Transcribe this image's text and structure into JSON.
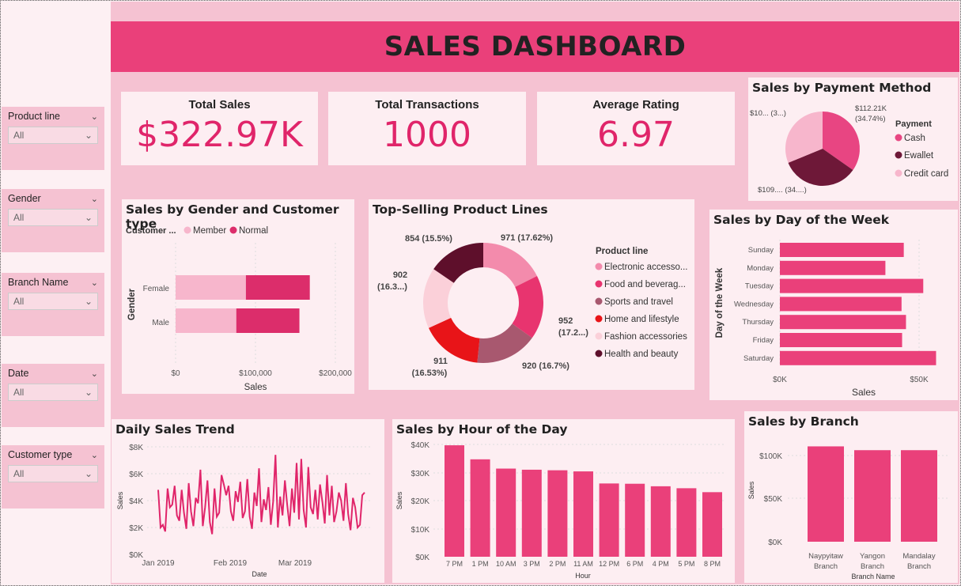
{
  "title": "SALES DASHBOARD",
  "slicers": [
    {
      "label": "Product line",
      "value": "All"
    },
    {
      "label": "Gender",
      "value": "All"
    },
    {
      "label": "Branch Name",
      "value": "All"
    },
    {
      "label": "Date",
      "value": "All"
    },
    {
      "label": "Customer type",
      "value": "All"
    }
  ],
  "kpis": [
    {
      "title": "Total Sales",
      "value": "$322.97K"
    },
    {
      "title": "Total Transactions",
      "value": "1000"
    },
    {
      "title": "Average Rating",
      "value": "6.97"
    }
  ],
  "payment": {
    "title": "Sales by Payment Method",
    "legend_title": "Payment",
    "labels": [
      "$112.21K",
      "(34.74%)",
      "$10... (3...)",
      "$109.... (34....)"
    ],
    "colors": {
      "Cash": "#e84582",
      "Ewallet": "#6e1838",
      "Credit card": "#f7b6cc"
    }
  },
  "gender": {
    "title": "Sales by Gender and Customer type",
    "legend_title": "Customer ...",
    "legend": [
      "Member",
      "Normal"
    ],
    "ylabel": "Gender",
    "xlabel": "Sales",
    "categories": [
      "Female",
      "Male"
    ],
    "ticks": [
      "$0",
      "$100,000",
      "$200,000"
    ]
  },
  "productlines": {
    "title": "Top-Selling Product Lines",
    "legend_title": "Product line",
    "legend": [
      "Electronic accesso...",
      "Food and beverag...",
      "Sports and travel",
      "Home and lifestyle",
      "Fashion accessories",
      "Health and beauty"
    ],
    "labels": [
      "971 (17.62%)",
      "952",
      "(17.2...)",
      "920 (16.7%)",
      "911",
      "(16.53%)",
      "902",
      "(16.3...)",
      "854 (15.5%)"
    ]
  },
  "dayofweek": {
    "title": "Sales by Day of the Week",
    "ylabel": "Day of the Week",
    "xlabel": "Sales",
    "ticks": [
      "$0K",
      "$50K"
    ]
  },
  "daily": {
    "title": "Daily Sales Trend",
    "ylabel": "Sales",
    "xlabel": "Date",
    "yticks": [
      "$8K",
      "$6K",
      "$4K",
      "$2K",
      "$0K"
    ],
    "xticks": [
      "Jan 2019",
      "Feb 2019",
      "Mar 2019"
    ]
  },
  "hour": {
    "title": "Sales by Hour of the Day",
    "ylabel": "Sales",
    "xlabel": "Hour",
    "yticks": [
      "$40K",
      "$30K",
      "$20K",
      "$10K",
      "$0K"
    ]
  },
  "branch": {
    "title": "Sales by Branch",
    "ylabel": "Sales",
    "xlabel": "Branch Name",
    "yticks": [
      "$100K",
      "$50K",
      "$0K"
    ]
  },
  "chart_data": [
    {
      "type": "pie",
      "title": "Sales by Payment Method",
      "categories": [
        "Cash",
        "Ewallet",
        "Credit card"
      ],
      "values": [
        112.21,
        109.99,
        100.77
      ],
      "unit": "$K"
    },
    {
      "type": "bar",
      "orientation": "horizontal",
      "stacked": true,
      "title": "Sales by Gender and Customer type",
      "categories": [
        "Female",
        "Male"
      ],
      "series": [
        {
          "name": "Member",
          "values": [
            88000,
            76000
          ]
        },
        {
          "name": "Normal",
          "values": [
            80000,
            79000
          ]
        }
      ],
      "xlim": [
        0,
        220000
      ]
    },
    {
      "type": "pie",
      "donut": true,
      "title": "Top-Selling Product Lines",
      "categories": [
        "Electronic accessories",
        "Food and beverages",
        "Sports and travel",
        "Home and lifestyle",
        "Fashion accessories",
        "Health and beauty"
      ],
      "values": [
        971,
        952,
        920,
        911,
        902,
        854
      ],
      "colors": [
        "#f38bac",
        "#e8346f",
        "#a8586f",
        "#e81418",
        "#fbd0d9",
        "#5e0f2b"
      ]
    },
    {
      "type": "bar",
      "orientation": "horizontal",
      "title": "Sales by Day of the Week",
      "categories": [
        "Sunday",
        "Monday",
        "Tuesday",
        "Wednesday",
        "Thursday",
        "Friday",
        "Saturday"
      ],
      "values": [
        44500,
        37900,
        51500,
        43700,
        45300,
        43900,
        56100
      ],
      "xlim": [
        0,
        60000
      ]
    },
    {
      "type": "line",
      "title": "Daily Sales Trend",
      "values": [
        4800,
        2000,
        2200,
        1700,
        4900,
        3500,
        3700,
        5100,
        2900,
        2500,
        4800,
        3100,
        1900,
        5300,
        3200,
        2100,
        4200,
        3800,
        6300,
        2100,
        3500,
        5500,
        2400,
        1500,
        4900,
        2800,
        3100,
        5900,
        5200,
        4400,
        5100,
        3200,
        2500,
        4700,
        3900,
        5400,
        2700,
        3200,
        5600,
        2800,
        1900,
        4600,
        3600,
        6400,
        2400,
        4100,
        3300,
        5000,
        2200,
        3900,
        7400,
        2000,
        4300,
        2900,
        5500,
        3700,
        2100,
        4900,
        3100,
        6800,
        2600,
        7100,
        3300,
        2000,
        6500,
        3500,
        3000,
        4800,
        2600,
        5200,
        3900,
        2300,
        5900,
        2900,
        5100,
        2400,
        3200,
        4600,
        4000,
        2500,
        5300,
        3000,
        1800,
        4200,
        3500,
        2000,
        2200,
        4400,
        4600
      ],
      "ylim": [
        0,
        8000
      ],
      "xticks": [
        "Jan 2019",
        "Feb 2019",
        "Mar 2019"
      ]
    },
    {
      "type": "bar",
      "title": "Sales by Hour of the Day",
      "categories": [
        "7 PM",
        "1 PM",
        "10 AM",
        "3 PM",
        "2 PM",
        "11 AM",
        "12 PM",
        "6 PM",
        "4 PM",
        "5 PM",
        "8 PM"
      ],
      "values": [
        39700,
        34700,
        31400,
        31000,
        30800,
        30400,
        26100,
        26000,
        25100,
        24400,
        23000
      ],
      "ylim": [
        0,
        40000
      ]
    },
    {
      "type": "bar",
      "title": "Sales by Branch",
      "categories": [
        "Naypyitaw Branch",
        "Yangon Branch",
        "Mandalay Branch"
      ],
      "values": [
        110600,
        106200,
        106200
      ],
      "ylim": [
        0,
        120000
      ]
    }
  ]
}
